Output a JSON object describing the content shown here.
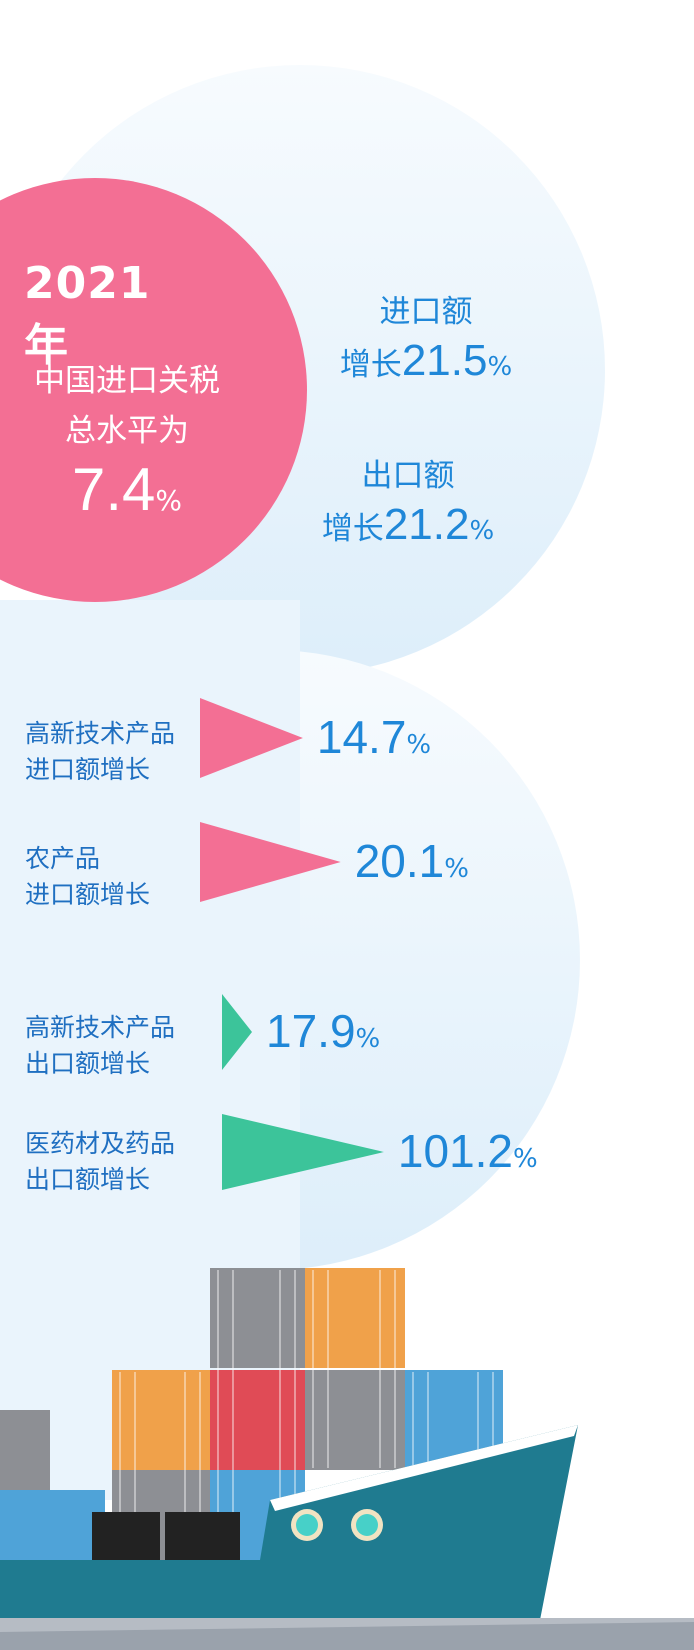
{
  "headline": {
    "year": "2021年",
    "line1": "中国进口关税",
    "line2": "总水平为",
    "value": "7.4",
    "unit": "%"
  },
  "trade_growth": {
    "import": {
      "label": "进口额",
      "prefix": "增长",
      "value": "21.5",
      "unit": "%"
    },
    "export": {
      "label": "出口额",
      "prefix": "增长",
      "value": "21.2",
      "unit": "%"
    }
  },
  "colors": {
    "pink": "#f36f94",
    "green": "#3cc49a",
    "text_blue": "#1f87d8",
    "bg_blue": "#e3f1fb"
  },
  "chart_data": {
    "type": "bar",
    "series": [
      {
        "color": "#f36f94",
        "rows": [
          {
            "label_line1": "高新技术产品",
            "label_line2": "进口额增长",
            "value": 14.7,
            "display": "14.7",
            "unit": "%"
          },
          {
            "label_line1": "农产品",
            "label_line2": "进口额增长",
            "value": 20.1,
            "display": "20.1",
            "unit": "%"
          }
        ]
      },
      {
        "color": "#3cc49a",
        "rows": [
          {
            "label_line1": "高新技术产品",
            "label_line2": "出口额增长",
            "value": 17.9,
            "display": "17.9",
            "unit": "%"
          },
          {
            "label_line1": "医药材及药品",
            "label_line2": "出口额增长",
            "value": 101.2,
            "display": "101.2",
            "unit": "%"
          }
        ]
      }
    ]
  }
}
